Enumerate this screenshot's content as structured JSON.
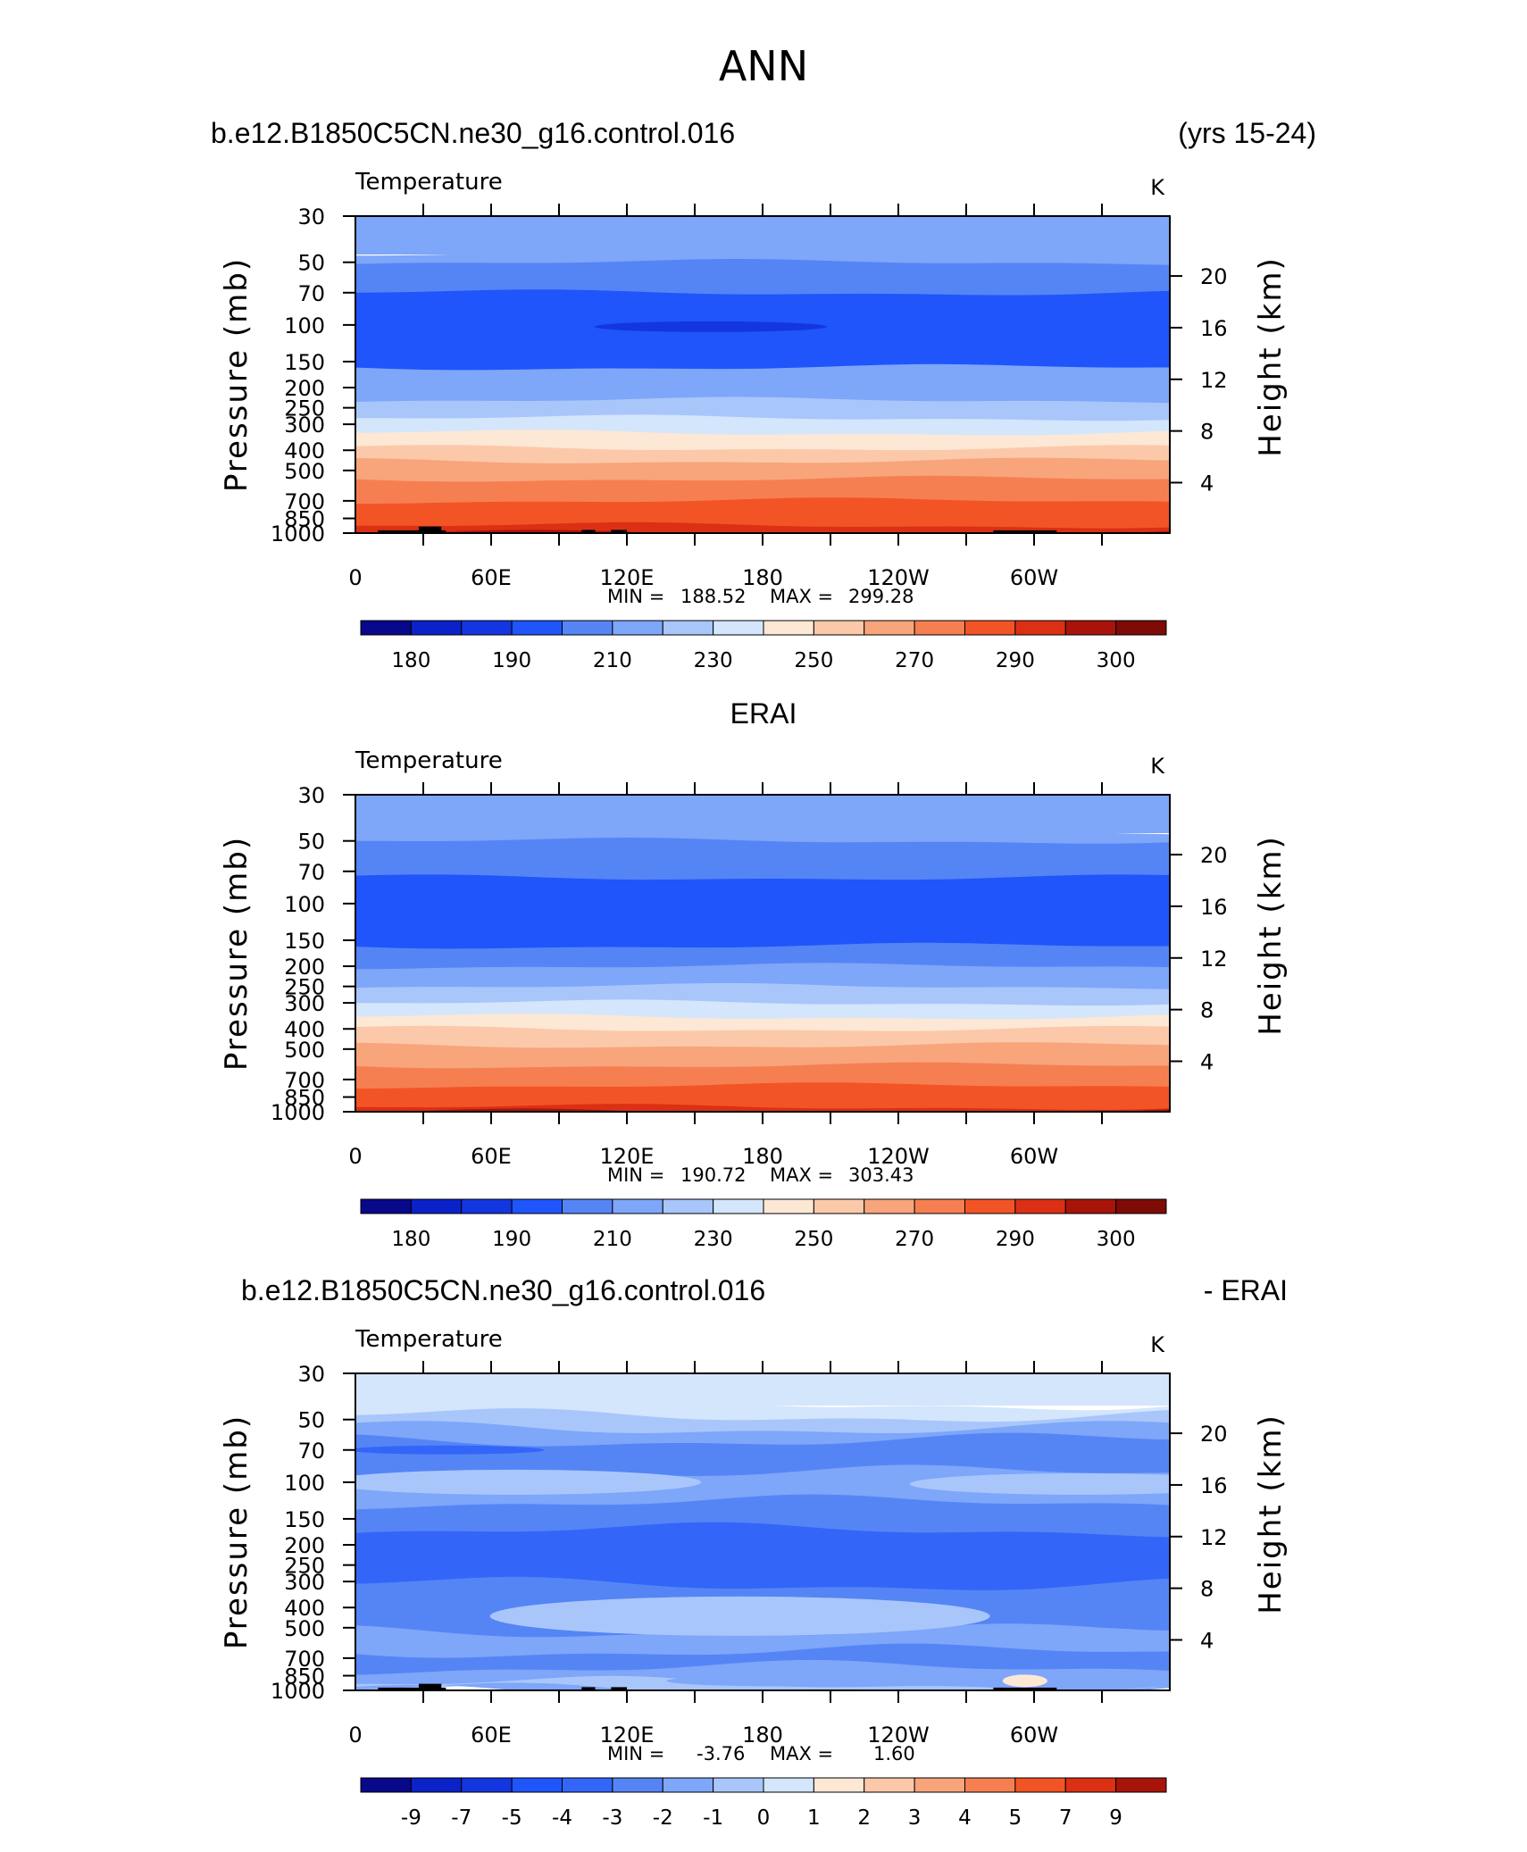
{
  "page_title": "ANN",
  "panels": [
    {
      "header_left": "b.e12.B1850C5CN.ne30_g16.control.016",
      "header_right": "(yrs 15-24)",
      "header_center": "",
      "var_label": "Temperature",
      "units": "K",
      "ylabel_left": "Pressure (mb)",
      "ylabel_right": "Height (km)",
      "min_label": "MIN =",
      "min_value": "188.52",
      "max_label": "MAX =",
      "max_value": "299.28",
      "colorbar_labels": [
        "180",
        "190",
        "210",
        "230",
        "250",
        "270",
        "290",
        "300"
      ]
    },
    {
      "header_left": "",
      "header_right": "",
      "header_center": "ERAI",
      "var_label": "Temperature",
      "units": "K",
      "ylabel_left": "Pressure (mb)",
      "ylabel_right": "Height (km)",
      "min_label": "MIN =",
      "min_value": "190.72",
      "max_label": "MAX =",
      "max_value": "303.43",
      "colorbar_labels": [
        "180",
        "190",
        "210",
        "230",
        "250",
        "270",
        "290",
        "300"
      ]
    },
    {
      "header_left": "b.e12.B1850C5CN.ne30_g16.control.016",
      "header_right": "- ERAI",
      "header_center": "",
      "var_label": "Temperature",
      "units": "K",
      "ylabel_left": "Pressure (mb)",
      "ylabel_right": "Height (km)",
      "min_label": "MIN =",
      "min_value": "-3.76",
      "max_label": "MAX =",
      "max_value": "1.60",
      "colorbar_labels": [
        "-9",
        "-7",
        "-5",
        "-4",
        "-3",
        "-2",
        "-1",
        "0",
        "1",
        "2",
        "3",
        "4",
        "5",
        "7",
        "9"
      ]
    }
  ],
  "colors": {
    "colorbar_abs": [
      "#08088a",
      "#0a22c8",
      "#1336e0",
      "#1f55fa",
      "#5585f5",
      "#7ea6f9",
      "#a9c6fb",
      "#d4e6fb",
      "#fde7d5",
      "#fbc9a9",
      "#f8a57c",
      "#f67f52",
      "#f35426",
      "#db3014",
      "#a8140a",
      "#7e0b05"
    ],
    "colorbar_diff": [
      "#08088a",
      "#0a22c8",
      "#1336e0",
      "#1f55fa",
      "#3366f8",
      "#5585f5",
      "#7ea6f9",
      "#a9c6fb",
      "#d4e6fb",
      "#fde7d5",
      "#fbc9a9",
      "#f8a57c",
      "#f67f52",
      "#f35426",
      "#db3014",
      "#a8140a"
    ],
    "topography": "#000000"
  },
  "chart_data": [
    {
      "type": "heatmap",
      "title": "b.e12.B1850C5CN.ne30_g16.control.016",
      "xlabel": "",
      "ylabel": "Pressure (mb)",
      "y2label": "Height (km)",
      "x_ticks": [
        "0",
        "60E",
        "120E",
        "180",
        "120W",
        "60W"
      ],
      "y_ticks_pressure": [
        30,
        50,
        70,
        100,
        150,
        200,
        250,
        300,
        400,
        500,
        700,
        850,
        1000
      ],
      "y_ticks_height": [
        20,
        16,
        12,
        8,
        4
      ],
      "ylim": [
        1000,
        30
      ],
      "xlim": [
        0,
        360
      ],
      "min": 188.52,
      "max": 299.28,
      "levels": [
        180,
        185,
        190,
        200,
        210,
        220,
        230,
        240,
        250,
        260,
        270,
        280,
        290,
        295,
        300
      ],
      "layer_profile": [
        {
          "p": 30,
          "v": 215
        },
        {
          "p": 45,
          "v": 215
        },
        {
          "p": 50,
          "v": 205
        },
        {
          "p": 63,
          "v": 205
        },
        {
          "p": 70,
          "v": 195
        },
        {
          "p": 100,
          "v": 195
        },
        {
          "p": 140,
          "v": 195
        },
        {
          "p": 160,
          "v": 215
        },
        {
          "p": 200,
          "v": 215
        },
        {
          "p": 230,
          "v": 225
        },
        {
          "p": 280,
          "v": 235
        },
        {
          "p": 330,
          "v": 245
        },
        {
          "p": 390,
          "v": 255
        },
        {
          "p": 450,
          "v": 265
        },
        {
          "p": 550,
          "v": 275
        },
        {
          "p": 700,
          "v": 283
        },
        {
          "p": 840,
          "v": 287
        },
        {
          "p": 920,
          "v": 291
        },
        {
          "p": 1000,
          "v": 297
        }
      ]
    },
    {
      "type": "heatmap",
      "title": "ERAI",
      "xlabel": "",
      "ylabel": "Pressure (mb)",
      "y2label": "Height (km)",
      "x_ticks": [
        "0",
        "60E",
        "120E",
        "180",
        "120W",
        "60W"
      ],
      "y_ticks_pressure": [
        30,
        50,
        70,
        100,
        150,
        200,
        250,
        300,
        400,
        500,
        700,
        850,
        1000
      ],
      "y_ticks_height": [
        20,
        16,
        12,
        8,
        4
      ],
      "ylim": [
        1000,
        30
      ],
      "xlim": [
        0,
        360
      ],
      "min": 190.72,
      "max": 303.43,
      "levels": [
        180,
        185,
        190,
        200,
        210,
        220,
        230,
        240,
        250,
        260,
        270,
        280,
        290,
        295,
        300
      ],
      "layer_profile": [
        {
          "p": 30,
          "v": 215
        },
        {
          "p": 45,
          "v": 215
        },
        {
          "p": 50,
          "v": 205
        },
        {
          "p": 68,
          "v": 205
        },
        {
          "p": 75,
          "v": 195
        },
        {
          "p": 140,
          "v": 195
        },
        {
          "p": 160,
          "v": 205
        },
        {
          "p": 200,
          "v": 215
        },
        {
          "p": 250,
          "v": 225
        },
        {
          "p": 300,
          "v": 235
        },
        {
          "p": 350,
          "v": 245
        },
        {
          "p": 400,
          "v": 255
        },
        {
          "p": 480,
          "v": 265
        },
        {
          "p": 600,
          "v": 275
        },
        {
          "p": 750,
          "v": 283
        },
        {
          "p": 870,
          "v": 289
        },
        {
          "p": 950,
          "v": 293
        },
        {
          "p": 1000,
          "v": 298
        }
      ]
    },
    {
      "type": "heatmap",
      "title": "b.e12.B1850C5CN.ne30_g16.control.016 - ERAI",
      "xlabel": "",
      "ylabel": "Pressure (mb)",
      "y2label": "Height (km)",
      "x_ticks": [
        "0",
        "60E",
        "120E",
        "180",
        "120W",
        "60W"
      ],
      "y_ticks_pressure": [
        30,
        50,
        70,
        100,
        150,
        200,
        250,
        300,
        400,
        500,
        700,
        850,
        1000
      ],
      "y_ticks_height": [
        20,
        16,
        12,
        8,
        4
      ],
      "ylim": [
        1000,
        30
      ],
      "xlim": [
        0,
        360
      ],
      "min": -3.76,
      "max": 1.6,
      "levels": [
        -9,
        -7,
        -5,
        -4,
        -3,
        -2,
        -1,
        0,
        1,
        2,
        3,
        4,
        5,
        7,
        9
      ],
      "layer_profile": [
        {
          "p": 30,
          "v": 0.5
        },
        {
          "p": 42,
          "v": 0.5
        },
        {
          "p": 48,
          "v": -0.5
        },
        {
          "p": 55,
          "v": -1.5
        },
        {
          "p": 63,
          "v": -2.5
        },
        {
          "p": 90,
          "v": -1.5
        },
        {
          "p": 125,
          "v": -2.5
        },
        {
          "p": 170,
          "v": -3.5
        },
        {
          "p": 260,
          "v": -3.5
        },
        {
          "p": 310,
          "v": -2.5
        },
        {
          "p": 420,
          "v": -2.5
        },
        {
          "p": 520,
          "v": -1.5
        },
        {
          "p": 650,
          "v": -2.5
        },
        {
          "p": 780,
          "v": -1.5
        },
        {
          "p": 880,
          "v": -1.5
        },
        {
          "p": 930,
          "v": -0.5
        },
        {
          "p": 1000,
          "v": -1.5
        }
      ]
    }
  ]
}
